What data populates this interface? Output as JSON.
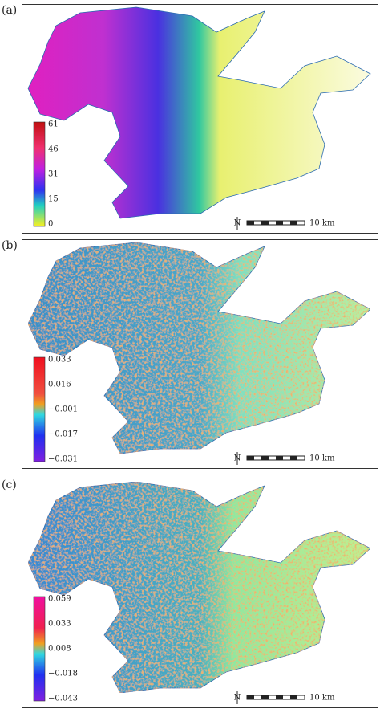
{
  "panels": [
    {
      "label": "(a)",
      "colorbar": {
        "ticks": [
          "61",
          "46",
          "31",
          "15",
          "0"
        ]
      },
      "scale": {
        "north": "N",
        "distance": "10 km"
      }
    },
    {
      "label": "(b)",
      "colorbar": {
        "ticks": [
          "0.033",
          "0.016",
          "−0.001",
          "−0.017",
          "−0.031"
        ]
      },
      "scale": {
        "north": "N",
        "distance": "10 km"
      }
    },
    {
      "label": "(c)",
      "colorbar": {
        "ticks": [
          "0.059",
          "0.033",
          "0.008",
          "−0.018",
          "−0.043"
        ]
      },
      "scale": {
        "north": "N",
        "distance": "10 km"
      }
    }
  ]
}
